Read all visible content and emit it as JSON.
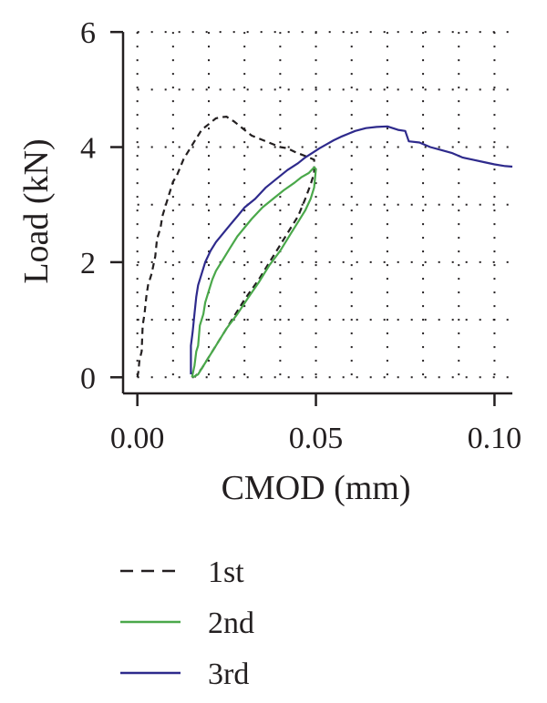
{
  "chart_data": {
    "type": "line",
    "xlabel": "CMOD (mm)",
    "ylabel": "Load (kN)",
    "xlim": [
      -0.004,
      0.105
    ],
    "ylim": [
      -0.28,
      6.05
    ],
    "x_ticks": [
      0.0,
      0.05,
      0.1
    ],
    "x_tick_labels": [
      "0.00",
      "0.05",
      "0.10"
    ],
    "y_ticks": [
      0,
      2,
      4,
      6
    ],
    "y_tick_labels": [
      "0",
      "2",
      "4",
      "6"
    ],
    "grid": true,
    "grid_x": [
      0.0,
      0.01,
      0.02,
      0.03,
      0.04,
      0.05,
      0.06,
      0.07,
      0.08,
      0.09,
      0.1
    ],
    "grid_y": [
      0,
      1,
      2,
      3,
      4,
      5,
      6
    ],
    "legend_position": "bottom",
    "series": [
      {
        "name": "1st",
        "color": "#231f20",
        "dash": "dashed",
        "points": [
          [
            0.0,
            0.0
          ],
          [
            0.0003,
            0.1
          ],
          [
            0.0006,
            0.3
          ],
          [
            0.0012,
            0.45
          ],
          [
            0.0015,
            0.9
          ],
          [
            0.002,
            1.1
          ],
          [
            0.0025,
            1.4
          ],
          [
            0.003,
            1.6
          ],
          [
            0.004,
            1.8
          ],
          [
            0.005,
            2.1
          ],
          [
            0.0055,
            2.4
          ],
          [
            0.0065,
            2.6
          ],
          [
            0.007,
            2.8
          ],
          [
            0.008,
            3.0
          ],
          [
            0.009,
            3.2
          ],
          [
            0.01,
            3.4
          ],
          [
            0.011,
            3.5
          ],
          [
            0.012,
            3.65
          ],
          [
            0.013,
            3.8
          ],
          [
            0.0145,
            3.95
          ],
          [
            0.016,
            4.1
          ],
          [
            0.017,
            4.2
          ],
          [
            0.018,
            4.3
          ],
          [
            0.019,
            4.35
          ],
          [
            0.02,
            4.4
          ],
          [
            0.021,
            4.45
          ],
          [
            0.022,
            4.5
          ],
          [
            0.0235,
            4.52
          ],
          [
            0.025,
            4.53
          ],
          [
            0.026,
            4.48
          ],
          [
            0.027,
            4.45
          ],
          [
            0.028,
            4.4
          ],
          [
            0.03,
            4.3
          ],
          [
            0.032,
            4.2
          ],
          [
            0.034,
            4.15
          ],
          [
            0.036,
            4.1
          ],
          [
            0.038,
            4.05
          ],
          [
            0.04,
            4.0
          ],
          [
            0.042,
            3.98
          ],
          [
            0.044,
            3.92
          ],
          [
            0.046,
            3.87
          ],
          [
            0.048,
            3.82
          ],
          [
            0.0495,
            3.78
          ],
          [
            0.0495,
            3.55
          ],
          [
            0.0485,
            3.35
          ],
          [
            0.047,
            3.1
          ],
          [
            0.045,
            2.8
          ],
          [
            0.043,
            2.6
          ],
          [
            0.04,
            2.3
          ],
          [
            0.037,
            2.0
          ],
          [
            0.034,
            1.7
          ],
          [
            0.03,
            1.35
          ],
          [
            0.027,
            1.05
          ],
          [
            0.024,
            0.75
          ],
          [
            0.021,
            0.45
          ],
          [
            0.018,
            0.15
          ],
          [
            0.016,
            0.0
          ]
        ]
      },
      {
        "name": "2nd",
        "color": "#4aa84a",
        "dash": "solid",
        "points": [
          [
            0.0153,
            0.0
          ],
          [
            0.016,
            0.2
          ],
          [
            0.0165,
            0.45
          ],
          [
            0.017,
            0.55
          ],
          [
            0.0175,
            0.9
          ],
          [
            0.0185,
            1.1
          ],
          [
            0.019,
            1.3
          ],
          [
            0.02,
            1.5
          ],
          [
            0.021,
            1.7
          ],
          [
            0.022,
            1.85
          ],
          [
            0.024,
            2.05
          ],
          [
            0.026,
            2.25
          ],
          [
            0.028,
            2.45
          ],
          [
            0.03,
            2.6
          ],
          [
            0.032,
            2.75
          ],
          [
            0.035,
            2.95
          ],
          [
            0.038,
            3.1
          ],
          [
            0.041,
            3.25
          ],
          [
            0.044,
            3.38
          ],
          [
            0.046,
            3.48
          ],
          [
            0.048,
            3.55
          ],
          [
            0.0495,
            3.65
          ],
          [
            0.05,
            3.62
          ],
          [
            0.0495,
            3.3
          ],
          [
            0.0485,
            3.1
          ],
          [
            0.047,
            2.9
          ],
          [
            0.045,
            2.7
          ],
          [
            0.043,
            2.5
          ],
          [
            0.04,
            2.2
          ],
          [
            0.037,
            1.95
          ],
          [
            0.034,
            1.65
          ],
          [
            0.031,
            1.38
          ],
          [
            0.028,
            1.1
          ],
          [
            0.025,
            0.85
          ],
          [
            0.022,
            0.55
          ],
          [
            0.019,
            0.25
          ],
          [
            0.017,
            0.05
          ],
          [
            0.0155,
            0.0
          ]
        ]
      },
      {
        "name": "3rd",
        "color": "#2e2a8c",
        "dash": "solid",
        "points": [
          [
            0.015,
            0.05
          ],
          [
            0.015,
            0.55
          ],
          [
            0.0155,
            0.8
          ],
          [
            0.016,
            1.1
          ],
          [
            0.0165,
            1.4
          ],
          [
            0.017,
            1.6
          ],
          [
            0.018,
            1.8
          ],
          [
            0.019,
            2.0
          ],
          [
            0.0205,
            2.2
          ],
          [
            0.022,
            2.35
          ],
          [
            0.024,
            2.5
          ],
          [
            0.026,
            2.65
          ],
          [
            0.028,
            2.8
          ],
          [
            0.03,
            2.95
          ],
          [
            0.033,
            3.1
          ],
          [
            0.036,
            3.3
          ],
          [
            0.039,
            3.45
          ],
          [
            0.042,
            3.6
          ],
          [
            0.045,
            3.72
          ],
          [
            0.047,
            3.82
          ],
          [
            0.049,
            3.9
          ],
          [
            0.051,
            3.98
          ],
          [
            0.053,
            4.05
          ],
          [
            0.055,
            4.12
          ],
          [
            0.057,
            4.18
          ],
          [
            0.059,
            4.23
          ],
          [
            0.061,
            4.28
          ],
          [
            0.064,
            4.33
          ],
          [
            0.067,
            4.35
          ],
          [
            0.07,
            4.36
          ],
          [
            0.073,
            4.3
          ],
          [
            0.075,
            4.28
          ],
          [
            0.076,
            4.1
          ],
          [
            0.079,
            4.08
          ],
          [
            0.082,
            4.0
          ],
          [
            0.085,
            3.95
          ],
          [
            0.088,
            3.9
          ],
          [
            0.091,
            3.82
          ],
          [
            0.094,
            3.78
          ],
          [
            0.097,
            3.74
          ],
          [
            0.1,
            3.7
          ],
          [
            0.103,
            3.67
          ],
          [
            0.105,
            3.66
          ]
        ]
      }
    ]
  }
}
